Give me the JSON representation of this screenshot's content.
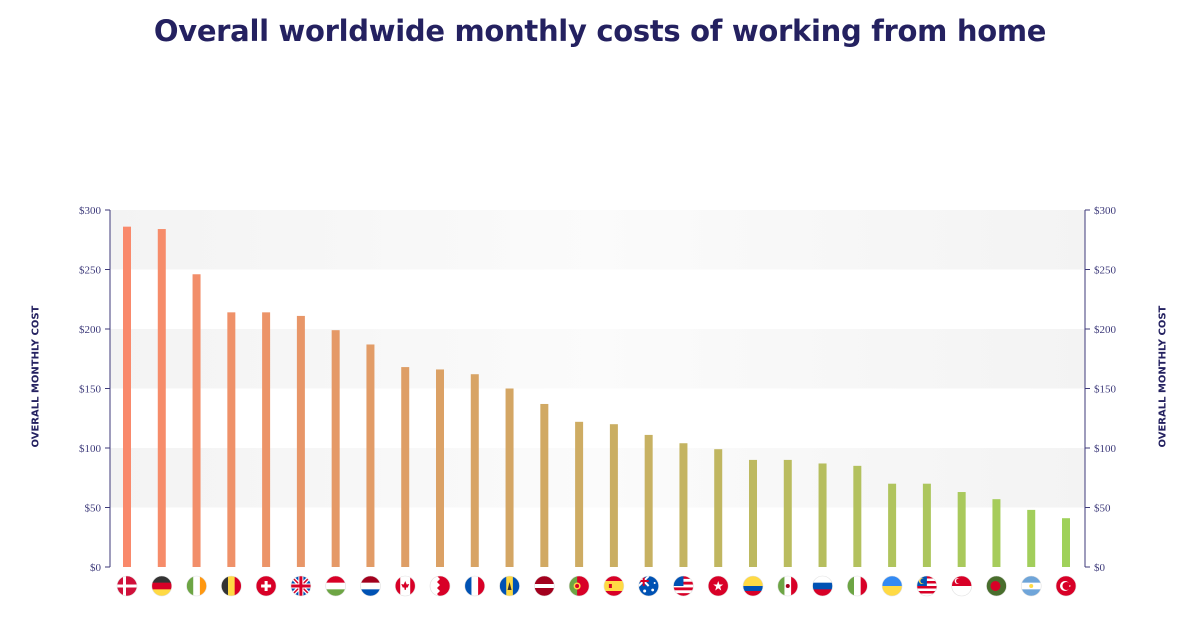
{
  "title": "Overall worldwide monthly costs of working from home",
  "axes": {
    "left_title": "OVERALL MONTHLY COST",
    "right_title": "OVERALL MONTHLY COST"
  },
  "colors": {
    "title": "#242160",
    "axis": "#3d3a7a",
    "bar_start": "#f9896b",
    "bar_end": "#9fd15a",
    "band": "#f0f0f0"
  },
  "chart_data": {
    "type": "bar",
    "categories": [
      "Denmark",
      "Germany",
      "Ireland",
      "Belgium",
      "Switzerland",
      "United Kingdom",
      "Hungary",
      "Netherlands",
      "Canada",
      "Bahrain",
      "France",
      "Barbados",
      "Latvia",
      "Portugal",
      "Spain",
      "Australia",
      "United States",
      "Hong Kong",
      "Colombia",
      "Mexico",
      "Russia",
      "Italy",
      "Ukraine",
      "Malaysia",
      "Singapore",
      "Bangladesh",
      "Argentina",
      "Turkey"
    ],
    "values": [
      286,
      284,
      246,
      214,
      214,
      211,
      199,
      187,
      168,
      166,
      162,
      150,
      137,
      122,
      120,
      111,
      104,
      99,
      90,
      90,
      87,
      85,
      70,
      70,
      63,
      57,
      48,
      41
    ],
    "yticks": [
      "$0",
      "$50",
      "$100",
      "$150",
      "$200",
      "$250",
      "$300"
    ],
    "ylim": [
      0,
      300
    ],
    "title": "Overall worldwide monthly costs of working from home",
    "ylabel": "OVERALL MONTHLY COST",
    "xlabel": "",
    "x_tick_icons": [
      "denmark-flag-icon",
      "germany-flag-icon",
      "ireland-flag-icon",
      "belgium-flag-icon",
      "switzerland-flag-icon",
      "uk-flag-icon",
      "hungary-flag-icon",
      "netherlands-flag-icon",
      "canada-flag-icon",
      "bahrain-flag-icon",
      "france-flag-icon",
      "barbados-flag-icon",
      "latvia-flag-icon",
      "portugal-flag-icon",
      "spain-flag-icon",
      "australia-flag-icon",
      "usa-flag-icon",
      "hong-kong-flag-icon",
      "colombia-flag-icon",
      "mexico-flag-icon",
      "russia-flag-icon",
      "italy-flag-icon",
      "ukraine-flag-icon",
      "malaysia-flag-icon",
      "singapore-flag-icon",
      "bangladesh-flag-icon",
      "argentina-flag-icon",
      "turkey-flag-icon"
    ],
    "grid": "alternating horizontal bands",
    "legend": "none"
  }
}
